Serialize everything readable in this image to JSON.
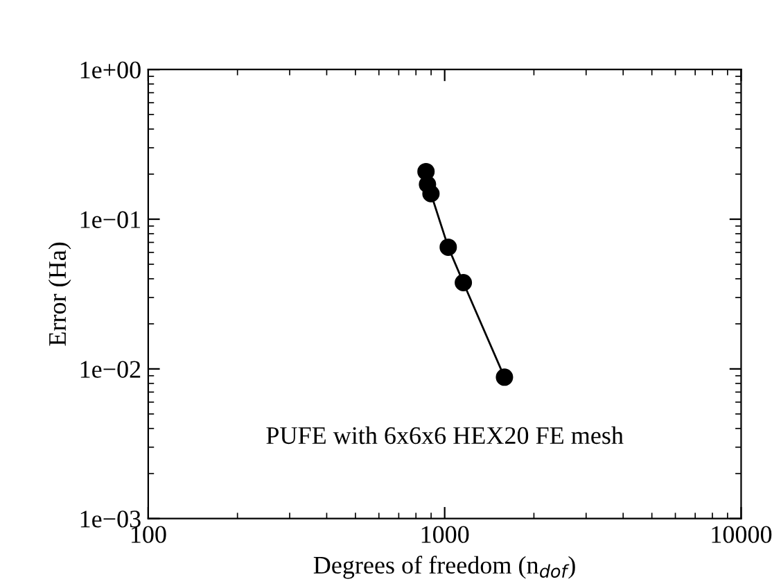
{
  "chart_data": {
    "type": "line",
    "xlabel": "Degrees of freedom (n$_{dof}$)",
    "ylabel": "Error (Ha)",
    "annotations": [
      "PUFE with 6x6x6 HEX20 FE mesh"
    ],
    "x": [
      865,
      875,
      899,
      1028,
      1156,
      1591
    ],
    "series": [
      {
        "color": "#000000",
        "values": [
          0.208,
          0.171,
          0.148,
          0.065,
          0.0377,
          0.0088
        ]
      }
    ],
    "log": "xy",
    "marker": "circle",
    "line_style": "solid",
    "grid": false,
    "legend": false,
    "xlim": [
      100,
      10000
    ],
    "xticks": [
      100,
      1000,
      10000
    ],
    "ylim": [
      0.001,
      1
    ],
    "yticks": [
      {
        "value": 0.001,
        "label": "1e−03"
      },
      {
        "value": 0.01,
        "label": "1e−02"
      },
      {
        "value": 0.1,
        "label": "1e−01"
      },
      {
        "value": 1,
        "label": "1e+00"
      }
    ]
  }
}
